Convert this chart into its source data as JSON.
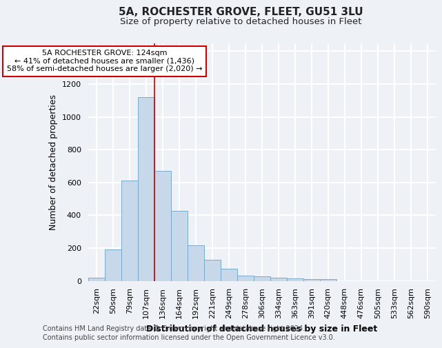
{
  "title": "5A, ROCHESTER GROVE, FLEET, GU51 3LU",
  "subtitle": "Size of property relative to detached houses in Fleet",
  "xlabel": "Distribution of detached houses by size in Fleet",
  "ylabel": "Number of detached properties",
  "footnote1": "Contains HM Land Registry data © Crown copyright and database right 2024.",
  "footnote2": "Contains public sector information licensed under the Open Government Licence v3.0.",
  "bar_labels": [
    "22sqm",
    "50sqm",
    "79sqm",
    "107sqm",
    "136sqm",
    "164sqm",
    "192sqm",
    "221sqm",
    "249sqm",
    "278sqm",
    "306sqm",
    "334sqm",
    "363sqm",
    "391sqm",
    "420sqm",
    "448sqm",
    "476sqm",
    "505sqm",
    "533sqm",
    "562sqm",
    "590sqm"
  ],
  "bar_values": [
    18,
    193,
    612,
    1120,
    670,
    425,
    218,
    127,
    73,
    30,
    27,
    20,
    15,
    10,
    12,
    0,
    0,
    0,
    0,
    0,
    0
  ],
  "bar_color": "#c8d8eb",
  "bar_edge_color": "#7aaac8",
  "annotation_line1": "5A ROCHESTER GROVE: 124sqm",
  "annotation_line2": "← 41% of detached houses are smaller (1,436)",
  "annotation_line3": "58% of semi-detached houses are larger (2,020) →",
  "annotation_box_color": "#ffffff",
  "annotation_box_edge": "#cc0000",
  "property_line_color": "#cc0000",
  "ylim": [
    0,
    1450
  ],
  "yticks": [
    0,
    200,
    400,
    600,
    800,
    1000,
    1200,
    1400
  ],
  "background_color": "#eef2f7",
  "grid_color": "#ffffff",
  "title_fontsize": 11,
  "subtitle_fontsize": 9.5,
  "xlabel_fontsize": 9,
  "ylabel_fontsize": 9,
  "tick_fontsize": 8,
  "footnote_fontsize": 7
}
